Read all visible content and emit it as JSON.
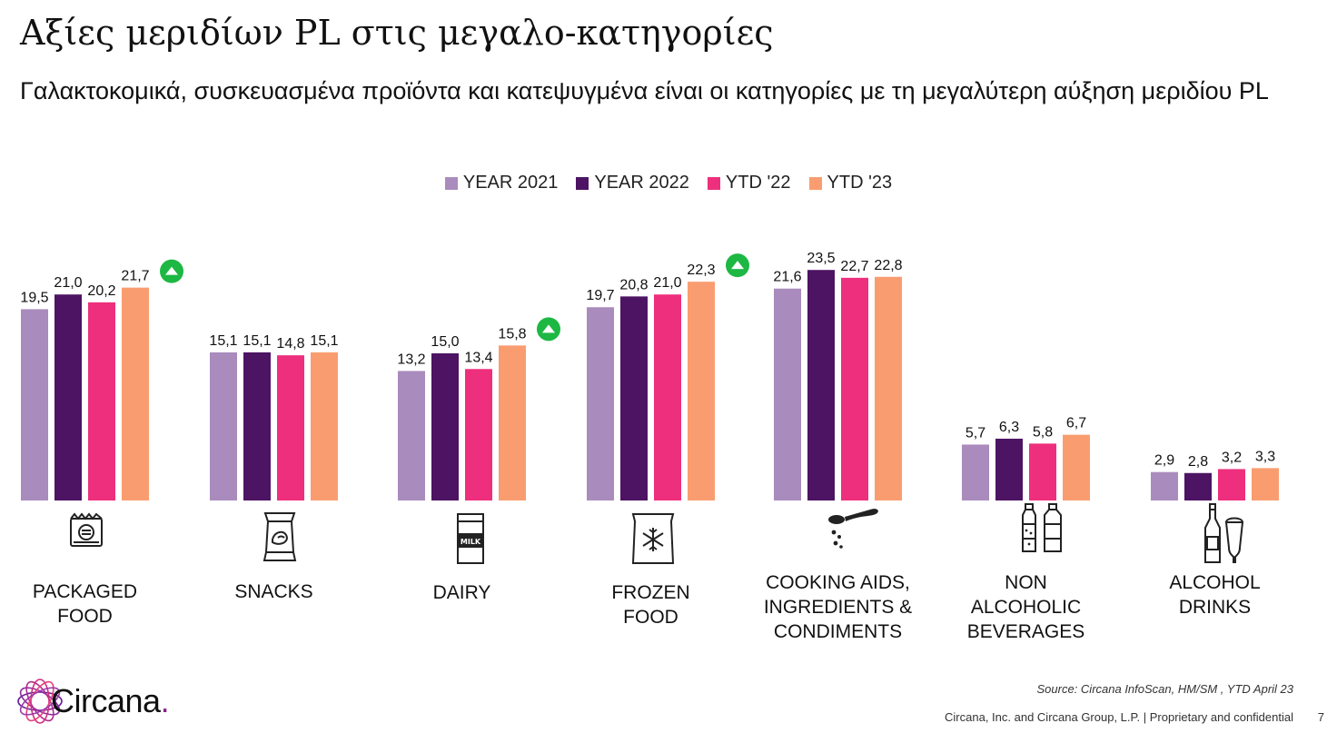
{
  "title": "Αξίες μεριδίων PL στις μεγαλο-κατηγορίες",
  "subtitle": "Γαλακτοκομικά, συσκευασμένα προϊόντα και κατεψυγμένα είναι οι κατηγορίες με τη μεγαλύτερη αύξηση μεριδίου PL",
  "colors": {
    "year2021": "#a98bbd",
    "year2022": "#4d1463",
    "ytd22": "#ee2f7d",
    "ytd23": "#f99d70",
    "up_marker": "#1db843",
    "icon_stroke": "#222222"
  },
  "chart_data": {
    "type": "bar",
    "title": "",
    "xlabel": "",
    "ylabel": "",
    "ylim": [
      0,
      25
    ],
    "grid": false,
    "legend_position": "top-center",
    "categories": [
      "PACKAGED\nFOOD",
      "SNACKS",
      "DAIRY",
      "FROZEN\nFOOD",
      "COOKING AIDS,\nINGREDIENTS &\nCONDIMENTS",
      "NON\nALCOHOLIC\nBEVERAGES",
      "ALCOHOL\nDRINKS"
    ],
    "category_icons": [
      "packaged-food-icon",
      "snacks-icon",
      "milk-carton-icon",
      "frozen-food-icon",
      "spoon-icon",
      "bottles-icon",
      "alcohol-icon"
    ],
    "series": [
      {
        "name": "YEAR 2021",
        "color": "#a98bbd",
        "values": [
          19.5,
          15.1,
          13.2,
          19.7,
          21.6,
          5.7,
          2.9
        ],
        "labels": [
          "19,5",
          "15,1",
          "13,2",
          "19,7",
          "21,6",
          "5,7",
          "2,9"
        ]
      },
      {
        "name": "YEAR 2022",
        "color": "#4d1463",
        "values": [
          21.0,
          15.1,
          15.0,
          20.8,
          23.5,
          6.3,
          2.8
        ],
        "labels": [
          "21,0",
          "15,1",
          "15,0",
          "20,8",
          "23,5",
          "6,3",
          "2,8"
        ]
      },
      {
        "name": "YTD '22",
        "color": "#ee2f7d",
        "values": [
          20.2,
          14.8,
          13.4,
          21.0,
          22.7,
          5.8,
          3.2
        ],
        "labels": [
          "20,2",
          "14,8",
          "13,4",
          "21,0",
          "22,7",
          "5,8",
          "3,2"
        ]
      },
      {
        "name": "YTD '23",
        "color": "#f99d70",
        "values": [
          21.7,
          15.1,
          15.8,
          22.3,
          22.8,
          6.7,
          3.3
        ],
        "labels": [
          "21,7",
          "15,1",
          "15,8",
          "22,3",
          "22,8",
          "6,7",
          "3,3"
        ]
      }
    ],
    "growth_markers": [
      "PACKAGED\nFOOD",
      "DAIRY",
      "FROZEN\nFOOD"
    ]
  },
  "logo": {
    "text": "Circana",
    "dot": "."
  },
  "footer": {
    "source": "Source: Circana InfoScan, HM/SM , YTD April 23",
    "legal": "Circana, Inc. and Circana Group, L.P. |  Proprietary and confidential",
    "page_number": "7"
  }
}
